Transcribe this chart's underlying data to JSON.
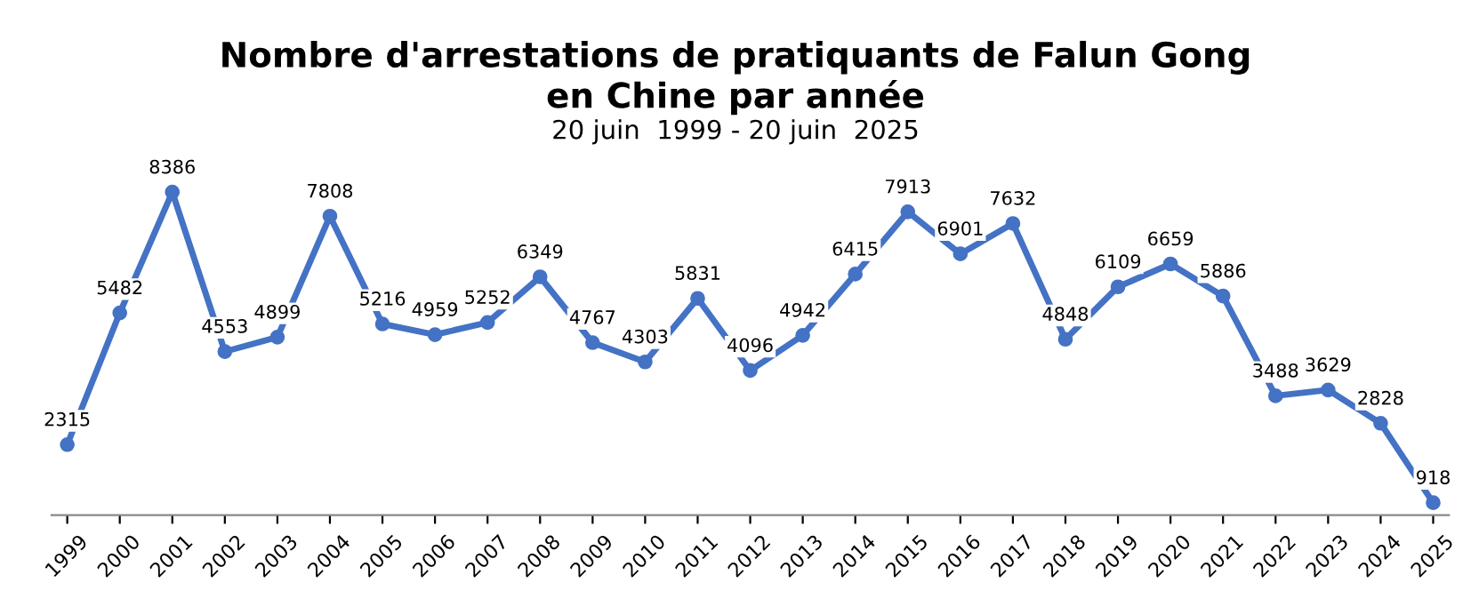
{
  "chart_data": {
    "type": "line",
    "title": "Nombre d'arrestations de pratiquants de Falun Gong\nen Chine par année",
    "subtitle": "20 juin  1999 - 20 juin  2025",
    "categories": [
      "1999",
      "2000",
      "2001",
      "2002",
      "2003",
      "2004",
      "2005",
      "2006",
      "2007",
      "2008",
      "2009",
      "2010",
      "2011",
      "2012",
      "2013",
      "2014",
      "2015",
      "2016",
      "2017",
      "2018",
      "2019",
      "2020",
      "2021",
      "2022",
      "2023",
      "2024",
      "2025"
    ],
    "series": [
      {
        "color": "#4472c4",
        "values": [
          2315,
          5482,
          8386,
          4553,
          4899,
          7808,
          5216,
          4959,
          5252,
          6349,
          4767,
          4303,
          5831,
          4096,
          4942,
          6415,
          7913,
          6901,
          7632,
          4848,
          6109,
          6659,
          5886,
          3488,
          3629,
          2828,
          918
        ]
      }
    ],
    "data_labels": true,
    "marker": "circle",
    "line_style": "solid",
    "grid": false,
    "legend": false,
    "tick_labels": "x"
  }
}
